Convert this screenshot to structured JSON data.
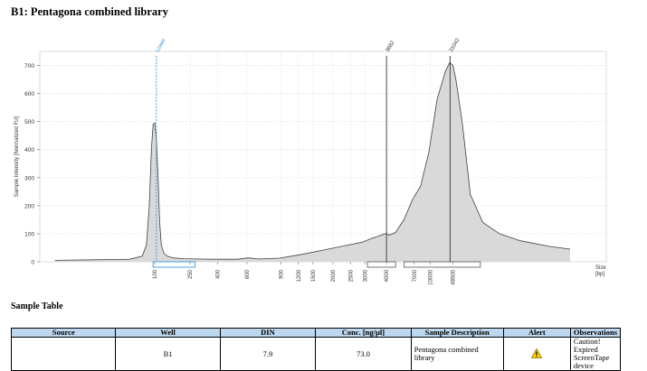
{
  "page": {
    "title": "B1: Pentagona combined library",
    "sample_table_heading": "Sample Table"
  },
  "chart_data": {
    "type": "area",
    "title": "B1: Pentagona combined library",
    "ylabel": "Sample Intensity [Normalized FU]",
    "xlabel": "Size [bp]",
    "xlabel_lines": [
      "Size",
      "[bp]"
    ],
    "ylim": [
      0,
      750
    ],
    "yticks": [
      0,
      100,
      200,
      300,
      400,
      500,
      600,
      700
    ],
    "grid": true,
    "fill_color": "#d9d9d9",
    "line_color": "#404040",
    "xticks": [
      {
        "label": "100",
        "pos": 0.0
      },
      {
        "label": "250",
        "pos": 0.085
      },
      {
        "label": "400",
        "pos": 0.151
      },
      {
        "label": "600",
        "pos": 0.222
      },
      {
        "label": "900",
        "pos": 0.304
      },
      {
        "label": "1200",
        "pos": 0.346
      },
      {
        "label": "1500",
        "pos": 0.381
      },
      {
        "label": "2000",
        "pos": 0.429
      },
      {
        "label": "2500",
        "pos": 0.472
      },
      {
        "label": "3000",
        "pos": 0.506
      },
      {
        "label": "4000",
        "pos": 0.558
      },
      {
        "label": "7000",
        "pos": 0.625
      },
      {
        "label": "10000",
        "pos": 0.663
      },
      {
        "label": "48500",
        "pos": 0.718
      }
    ],
    "series": [
      {
        "pos": [
          -0.24,
          -0.2,
          -0.15,
          -0.1,
          -0.06,
          -0.03,
          -0.02,
          -0.013,
          -0.008,
          -0.004,
          0.0,
          0.004,
          0.008,
          0.012,
          0.016,
          0.022,
          0.03,
          0.045,
          0.07,
          0.1,
          0.14,
          0.2,
          0.225,
          0.25,
          0.3,
          0.35,
          0.4,
          0.45,
          0.5,
          0.52,
          0.54,
          0.553,
          0.558,
          0.565,
          0.58,
          0.6,
          0.62,
          0.64,
          0.66,
          0.68,
          0.7,
          0.71,
          0.718,
          0.725,
          0.74,
          0.76,
          0.79,
          0.83,
          0.88,
          0.95,
          1.0
        ],
        "values": [
          5,
          6,
          7,
          8,
          9,
          20,
          60,
          200,
          400,
          490,
          495,
          440,
          300,
          140,
          60,
          30,
          20,
          14,
          11,
          10,
          9,
          9,
          14,
          10,
          13,
          25,
          40,
          55,
          70,
          82,
          92,
          99,
          100,
          95,
          105,
          150,
          220,
          270,
          390,
          580,
          680,
          710,
          700,
          650,
          500,
          240,
          140,
          100,
          75,
          55,
          45
        ]
      }
    ],
    "markers": [
      {
        "label": "Lower",
        "pos": 0.004,
        "value": 495,
        "color": "#1f8fe5"
      },
      {
        "label": "3682",
        "pos": 0.558,
        "value": 100,
        "color": "#333333"
      },
      {
        "label": "31042",
        "pos": 0.711,
        "value": 710,
        "color": "#333333"
      }
    ],
    "peak_boxes": [
      {
        "from": -0.004,
        "to": 0.097,
        "color": "#1f8fe5"
      },
      {
        "from": 0.512,
        "to": 0.58,
        "color": "#555555"
      },
      {
        "from": 0.6,
        "to": 0.784,
        "color": "#555555"
      }
    ]
  },
  "sample_table": {
    "columns": [
      "Source",
      "Well",
      "DIN",
      "Conc. [ng/µl]",
      "Sample Description",
      "Alert",
      "Observations"
    ],
    "rows": [
      {
        "source": "",
        "well": "B1",
        "din": "7.9",
        "conc": "73.0",
        "description": "Pentagona combined library",
        "alert_icon": "warning-icon",
        "observations": "Caution! Expired ScreenTape device"
      }
    ]
  }
}
